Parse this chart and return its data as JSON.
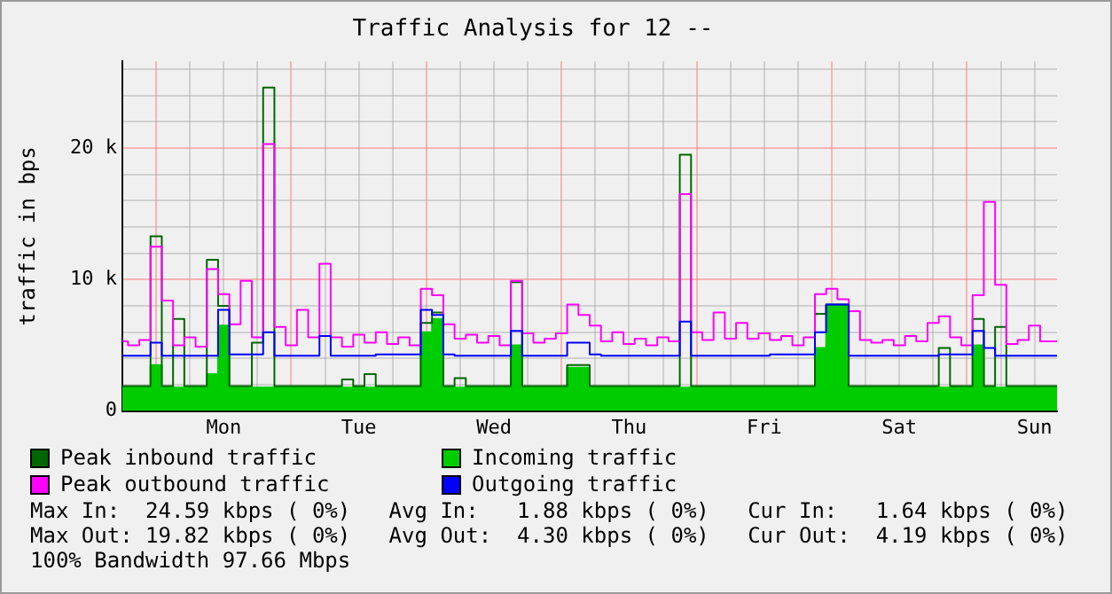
{
  "chart_data": {
    "type": "step",
    "title": "Traffic Analysis for 12 --",
    "ylabel": "traffic in bps",
    "categories": [
      null,
      null,
      null,
      null,
      null,
      null,
      null,
      null,
      null,
      "Mon",
      null,
      null,
      null,
      null,
      null,
      null,
      null,
      null,
      null,
      null,
      null,
      "Tue",
      null,
      null,
      null,
      null,
      null,
      null,
      null,
      null,
      null,
      null,
      null,
      "Wed",
      null,
      null,
      null,
      null,
      null,
      null,
      null,
      null,
      null,
      null,
      null,
      "Thu",
      null,
      null,
      null,
      null,
      null,
      null,
      null,
      null,
      null,
      null,
      null,
      "Fri",
      null,
      null,
      null,
      null,
      null,
      null,
      null,
      null,
      null,
      null,
      null,
      "Sat",
      null,
      null,
      null,
      null,
      null,
      null,
      null,
      null,
      null,
      null,
      null,
      "Sun",
      null,
      null
    ],
    "ylim": [
      0,
      26600
    ],
    "yticks": [
      {
        "value": 0,
        "label": "0"
      },
      {
        "value": 2000,
        "label": null
      },
      {
        "value": 4000,
        "label": null
      },
      {
        "value": 6000,
        "label": null
      },
      {
        "value": 8000,
        "label": null
      },
      {
        "value": 10000,
        "label": "10 k"
      },
      {
        "value": 12000,
        "label": null
      },
      {
        "value": 14000,
        "label": null
      },
      {
        "value": 16000,
        "label": null
      },
      {
        "value": 18000,
        "label": null
      },
      {
        "value": 20000,
        "label": "20 k"
      },
      {
        "value": 22000,
        "label": null
      },
      {
        "value": 24000,
        "label": null
      },
      {
        "value": 26000,
        "label": null
      }
    ],
    "grid": true,
    "legend": "bottom",
    "series": [
      {
        "name": "Incoming traffic",
        "type": "area",
        "color": "#00cc00",
        "values": [
          1800,
          1800,
          1800,
          3500,
          1800,
          1800,
          1800,
          1800,
          2800,
          6500,
          1800,
          1800,
          1800,
          1800,
          1800,
          1800,
          1800,
          1800,
          1800,
          1800,
          1800,
          1800,
          1800,
          1800,
          1800,
          1800,
          1800,
          6000,
          7000,
          1800,
          1800,
          1800,
          1800,
          1800,
          1800,
          5000,
          1800,
          1800,
          1800,
          1800,
          3300,
          3300,
          1800,
          1800,
          1800,
          1800,
          1800,
          1800,
          1800,
          1800,
          1800,
          1800,
          1800,
          1800,
          1800,
          1800,
          1800,
          1800,
          1800,
          1800,
          1800,
          1800,
          4800,
          8000,
          8000,
          1800,
          1800,
          1800,
          1800,
          1800,
          1800,
          1800,
          1800,
          1800,
          1800,
          1800,
          5000,
          1800,
          1800,
          1800,
          1800,
          1800,
          1800,
          1800
        ]
      },
      {
        "name": "Peak inbound traffic",
        "color": "#006600",
        "values": [
          1900,
          1900,
          1900,
          13300,
          1900,
          7000,
          1900,
          1900,
          11500,
          8000,
          1900,
          1900,
          5200,
          24600,
          1900,
          1900,
          1900,
          1900,
          1900,
          1900,
          2400,
          1900,
          2800,
          1900,
          1900,
          1900,
          1900,
          6700,
          7500,
          1900,
          2500,
          1900,
          1900,
          1900,
          1900,
          9800,
          1900,
          1900,
          1900,
          1900,
          3500,
          3500,
          1900,
          1900,
          1900,
          1900,
          1900,
          1900,
          1900,
          1900,
          19500,
          1900,
          1900,
          1900,
          1900,
          1900,
          1900,
          1900,
          1900,
          1900,
          1900,
          1900,
          7400,
          8100,
          8100,
          1900,
          1900,
          1900,
          1900,
          1900,
          1900,
          1900,
          1900,
          4800,
          1900,
          1900,
          7000,
          1900,
          6400,
          1900,
          1900,
          1900,
          1900,
          1900
        ]
      },
      {
        "name": "Peak outbound traffic",
        "color": "#ff00ff",
        "values": [
          5300,
          5000,
          5400,
          12500,
          8400,
          5000,
          5600,
          4900,
          10800,
          8900,
          6600,
          9900,
          5600,
          20300,
          6400,
          5000,
          7700,
          5600,
          11200,
          5600,
          4900,
          5800,
          5200,
          6000,
          5100,
          5600,
          5000,
          9300,
          8800,
          6600,
          5500,
          5800,
          5200,
          5700,
          5000,
          9900,
          5900,
          5200,
          5500,
          5900,
          8100,
          7300,
          6500,
          5300,
          6000,
          5100,
          5500,
          5000,
          5600,
          5300,
          16500,
          6000,
          5400,
          7500,
          5500,
          6700,
          5500,
          5900,
          5400,
          5700,
          5000,
          5600,
          8900,
          9300,
          8500,
          7600,
          5400,
          5200,
          5400,
          5000,
          5700,
          5300,
          6700,
          7200,
          5600,
          5000,
          8800,
          15900,
          9600,
          5100,
          5400,
          6500,
          5300,
          5300
        ]
      },
      {
        "name": "Outgoing traffic",
        "color": "#0000ff",
        "values": [
          4200,
          4200,
          4200,
          5200,
          4200,
          4200,
          4200,
          4200,
          4200,
          7700,
          4300,
          4300,
          4300,
          6000,
          4200,
          4200,
          4200,
          4200,
          5700,
          4200,
          4200,
          4200,
          4200,
          4300,
          4300,
          4300,
          4300,
          7700,
          7300,
          4300,
          4200,
          4200,
          4200,
          4200,
          4200,
          6100,
          4200,
          4200,
          4200,
          4200,
          5200,
          5200,
          4300,
          4200,
          4200,
          4200,
          4200,
          4200,
          4200,
          4200,
          6800,
          4200,
          4200,
          4200,
          4200,
          4200,
          4200,
          4200,
          4300,
          4300,
          4300,
          4300,
          6000,
          8100,
          8100,
          4200,
          4200,
          4200,
          4200,
          4200,
          4200,
          4200,
          4200,
          4300,
          4300,
          4300,
          6100,
          4800,
          4200,
          4200,
          4200,
          4200,
          4200,
          4200
        ]
      }
    ],
    "annotations": [
      "Max In:  24.59 kbps ( 0%)   Avg In:   1.88 kbps ( 0%)   Cur In:   1.64 kbps ( 0%)",
      "Max Out: 19.82 kbps ( 0%)   Avg Out:  4.30 kbps ( 0%)   Cur Out:  4.19 kbps ( 0%)",
      "100% Bandwidth 97.66 Mbps"
    ]
  }
}
